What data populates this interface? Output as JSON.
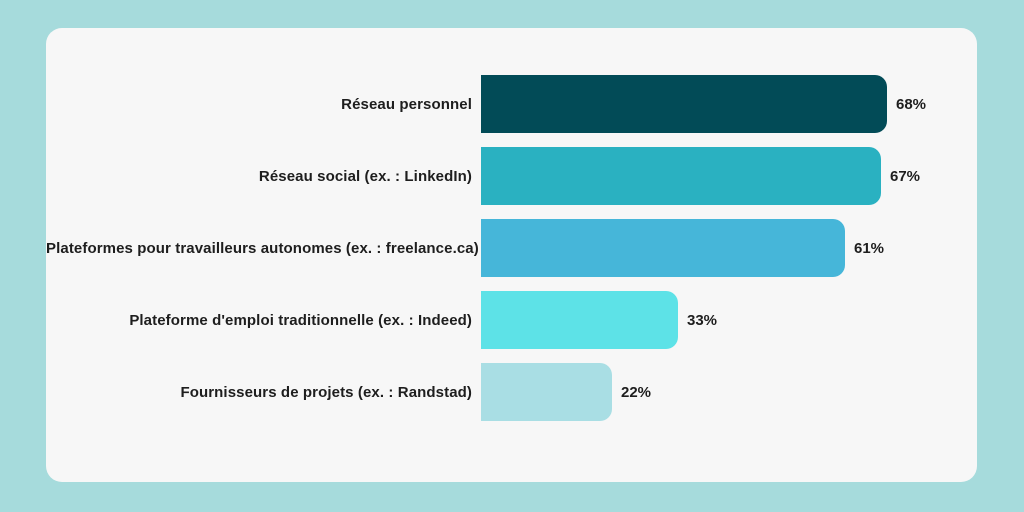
{
  "page": {
    "background_color": "#a6dbdc",
    "card_background": "#f7f7f7",
    "text_color": "#1e1e1e"
  },
  "chart_data": {
    "type": "bar",
    "orientation": "horizontal",
    "title": "",
    "xlabel": "",
    "ylabel": "",
    "xlim": [
      0,
      100
    ],
    "grid": false,
    "legend": false,
    "value_suffix": "%",
    "categories": [
      "Réseau personnel",
      "Réseau social (ex. : LinkedIn)",
      "Plateformes pour travailleurs autonomes (ex. : freelance.ca)",
      "Plateforme d'emploi traditionnelle (ex. : Indeed)",
      "Fournisseurs de projets (ex. : Randstad)"
    ],
    "values": [
      68,
      67,
      61,
      33,
      22
    ],
    "value_labels": [
      "68%",
      "67%",
      "61%",
      "33%",
      "22%"
    ],
    "bar_colors": [
      "#024b57",
      "#2ab1c1",
      "#46b6d9",
      "#5de2e7",
      "#a9dee4"
    ]
  }
}
